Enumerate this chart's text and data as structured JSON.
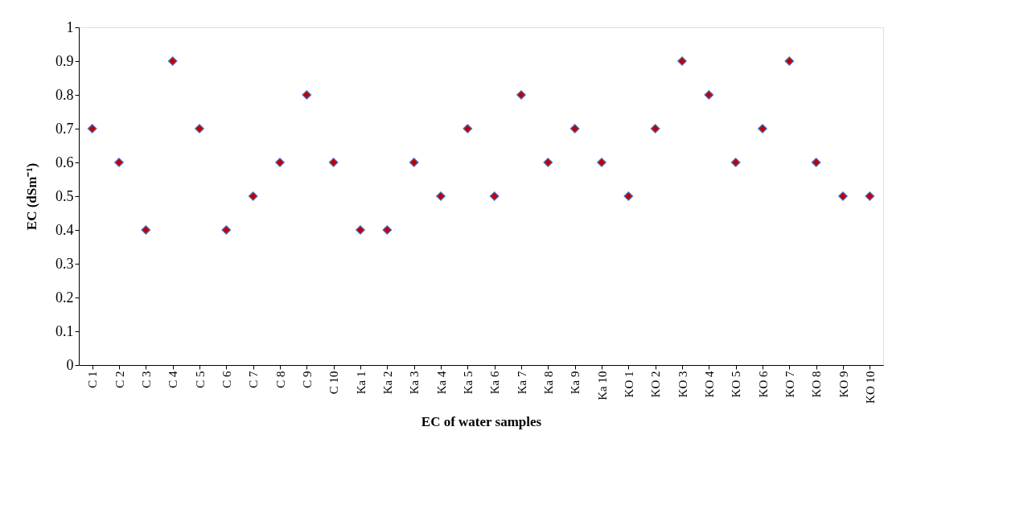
{
  "chart_data": {
    "type": "scatter",
    "xlabel": "EC of water samples",
    "ylabel": "EC (dSm⁻¹)",
    "categories": [
      "C 1",
      "C 2",
      "C 3",
      "C 4",
      "C 5",
      "C 6",
      "C 7",
      "C 8",
      "C 9",
      "C 10",
      "Ka 1",
      "Ka 2",
      "Ka 3",
      "Ka 4",
      "Ka 5",
      "Ka 6",
      "Ka 7",
      "Ka 8",
      "Ka 9",
      "Ka 10",
      "KO 1",
      "KO 2",
      "KO 3",
      "KO 4",
      "KO 5",
      "KO 6",
      "KO 7",
      "KO 8",
      "KO 9",
      "KO 10"
    ],
    "series": [
      {
        "color": "#c00000",
        "values": [
          0.7,
          0.6,
          0.4,
          0.9,
          0.7,
          0.4,
          0.5,
          0.6,
          0.8,
          0.6,
          0.4,
          0.4,
          0.6,
          0.5,
          0.7,
          0.5,
          0.8,
          0.6,
          0.7,
          0.6,
          0.5,
          0.7,
          0.9,
          0.8,
          0.6,
          0.7,
          0.9,
          0.6,
          0.5,
          0.5
        ]
      }
    ],
    "ylim": [
      0,
      1
    ],
    "yticks": [
      0,
      0.1,
      0.2,
      0.3,
      0.4,
      0.5,
      0.6,
      0.7,
      0.8,
      0.9,
      1
    ],
    "marker": "diamond",
    "grid": false
  }
}
